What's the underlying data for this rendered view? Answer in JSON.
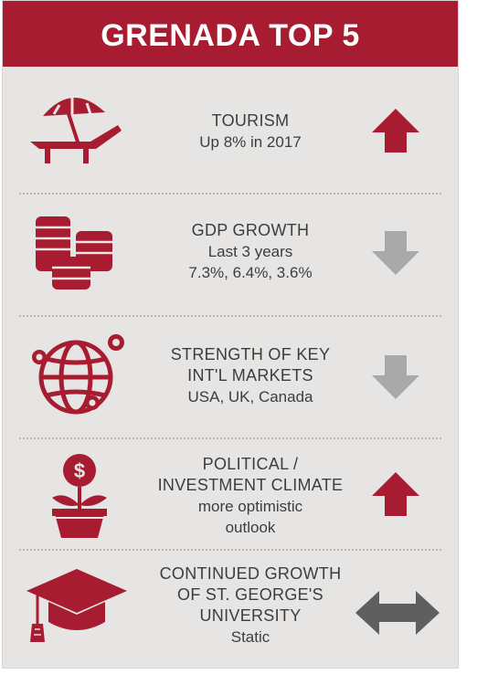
{
  "header": {
    "title": "GRENADA TOP 5"
  },
  "colors": {
    "accent": "#a71c30",
    "neutral_arrow": "#a9a9a9",
    "dark_arrow": "#5f5f5f",
    "background": "#e7e5e3"
  },
  "items": [
    {
      "icon": "beach-chair-umbrella-icon",
      "title_lines": [
        "TOURISM"
      ],
      "detail_lines": [
        "Up 8% in 2017"
      ],
      "trend": "up"
    },
    {
      "icon": "coin-stacks-icon",
      "title_lines": [
        "GDP GROWTH"
      ],
      "detail_lines": [
        "Last 3 years",
        "7.3%, 6.4%, 3.6%"
      ],
      "trend": "down"
    },
    {
      "icon": "globe-network-icon",
      "title_lines": [
        "STRENGTH OF KEY",
        "INT'L MARKETS"
      ],
      "detail_lines": [
        "USA, UK, Canada"
      ],
      "trend": "down"
    },
    {
      "icon": "money-plant-icon",
      "title_lines": [
        "POLITICAL /",
        "INVESTMENT CLIMATE"
      ],
      "detail_lines": [
        "more optimistic",
        "outlook"
      ],
      "trend": "up"
    },
    {
      "icon": "graduation-cap-icon",
      "title_lines": [
        "CONTINUED GROWTH",
        "OF ST. GEORGE'S",
        "UNIVERSITY"
      ],
      "detail_lines": [
        "Static"
      ],
      "trend": "static"
    }
  ]
}
